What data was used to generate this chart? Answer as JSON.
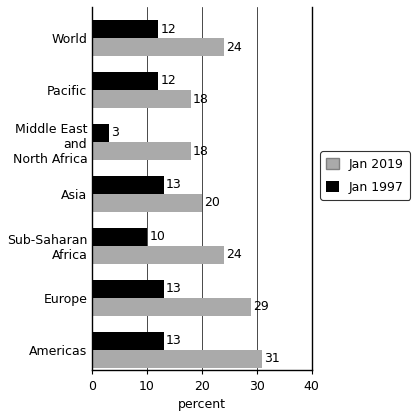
{
  "categories": [
    "World",
    "Pacific",
    "Middle East\nand\nNorth Africa",
    "Asia",
    "Sub-Saharan\nAfrica",
    "Europe",
    "Americas"
  ],
  "values_2019": [
    24,
    18,
    18,
    20,
    24,
    29,
    31
  ],
  "values_1997": [
    12,
    12,
    3,
    13,
    10,
    13,
    13
  ],
  "color_2019": "#aaaaaa",
  "color_1997": "#000000",
  "xlabel": "percent",
  "xlim": [
    0,
    40
  ],
  "xticks": [
    0,
    10,
    20,
    30,
    40
  ],
  "legend_2019": "Jan 2019",
  "legend_1997": "Jan 1997",
  "bar_height": 0.35,
  "label_fontsize": 9,
  "axis_fontsize": 9,
  "legend_fontsize": 9
}
